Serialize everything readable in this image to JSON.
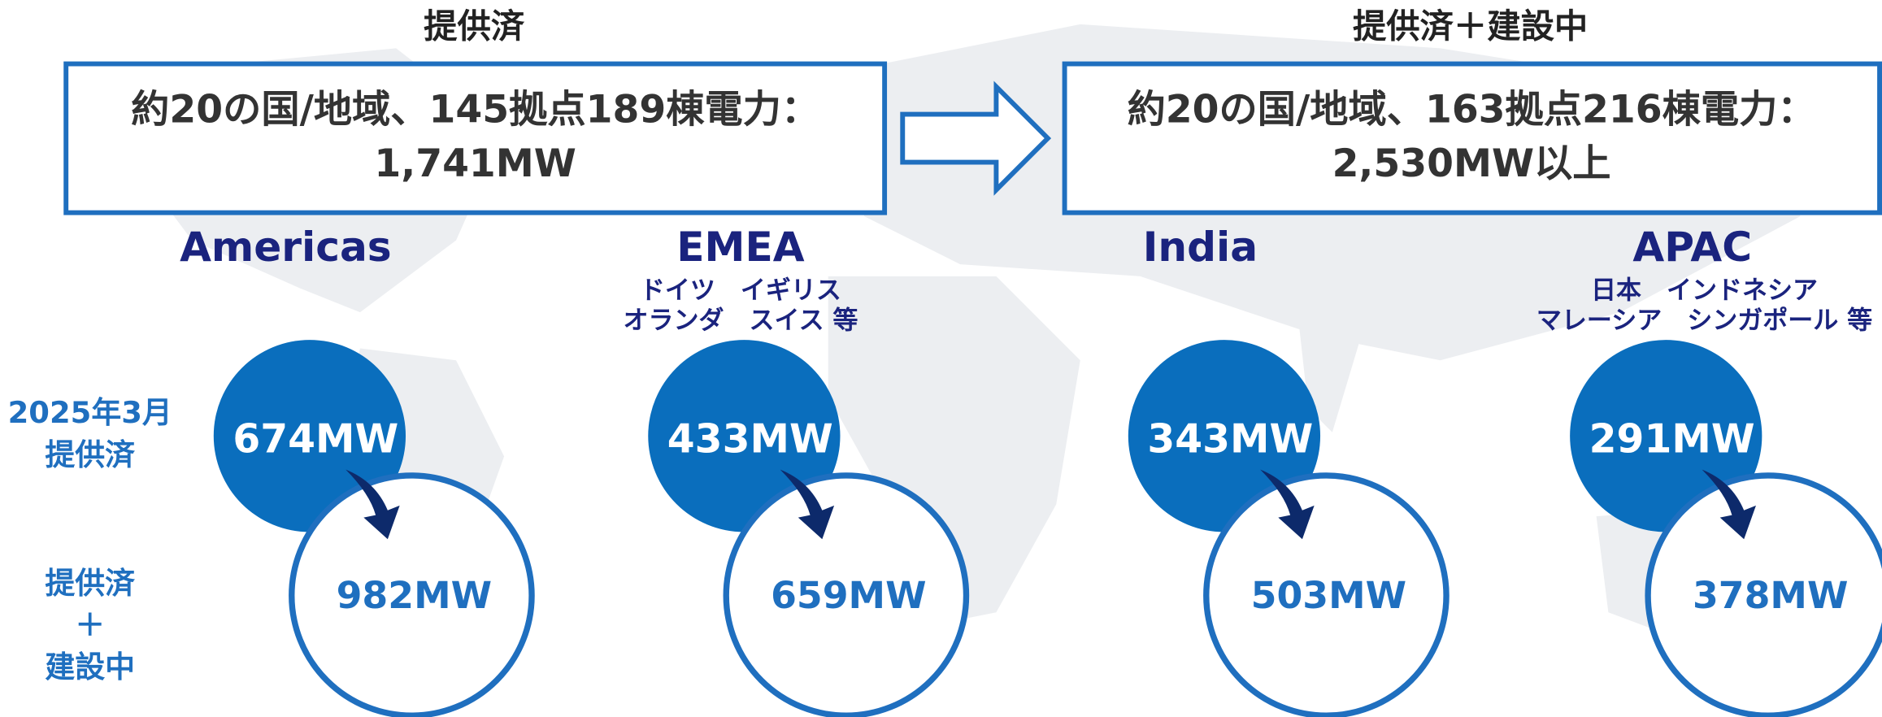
{
  "left": {
    "heading": "提供済",
    "lines": [
      "約20の国/地域、145拠点189棟電力：",
      "1,741MW"
    ]
  },
  "right": {
    "heading": "提供済＋建設中",
    "lines": [
      "約20の国/地域、163拠点216棟電力：",
      "2,530MW以上"
    ]
  },
  "row_labels": {
    "delivered": [
      "2025年3月",
      "提供済"
    ],
    "total": [
      "提供済",
      "＋",
      "建設中"
    ]
  },
  "regions": [
    {
      "name": "Americas",
      "sub": [],
      "delivered": "674MW",
      "total": "982MW"
    },
    {
      "name": "EMEA",
      "sub": [
        "ドイツ　イギリス",
        "オランダ　スイス 等"
      ],
      "delivered": "433MW",
      "total": "659MW"
    },
    {
      "name": "India",
      "sub": [],
      "delivered": "343MW",
      "total": "503MW"
    },
    {
      "name": "APAC",
      "sub": [
        "日本　インドネシア",
        "マレーシア　シンガポール 等"
      ],
      "delivered": "291MW",
      "total": "378MW"
    }
  ]
}
